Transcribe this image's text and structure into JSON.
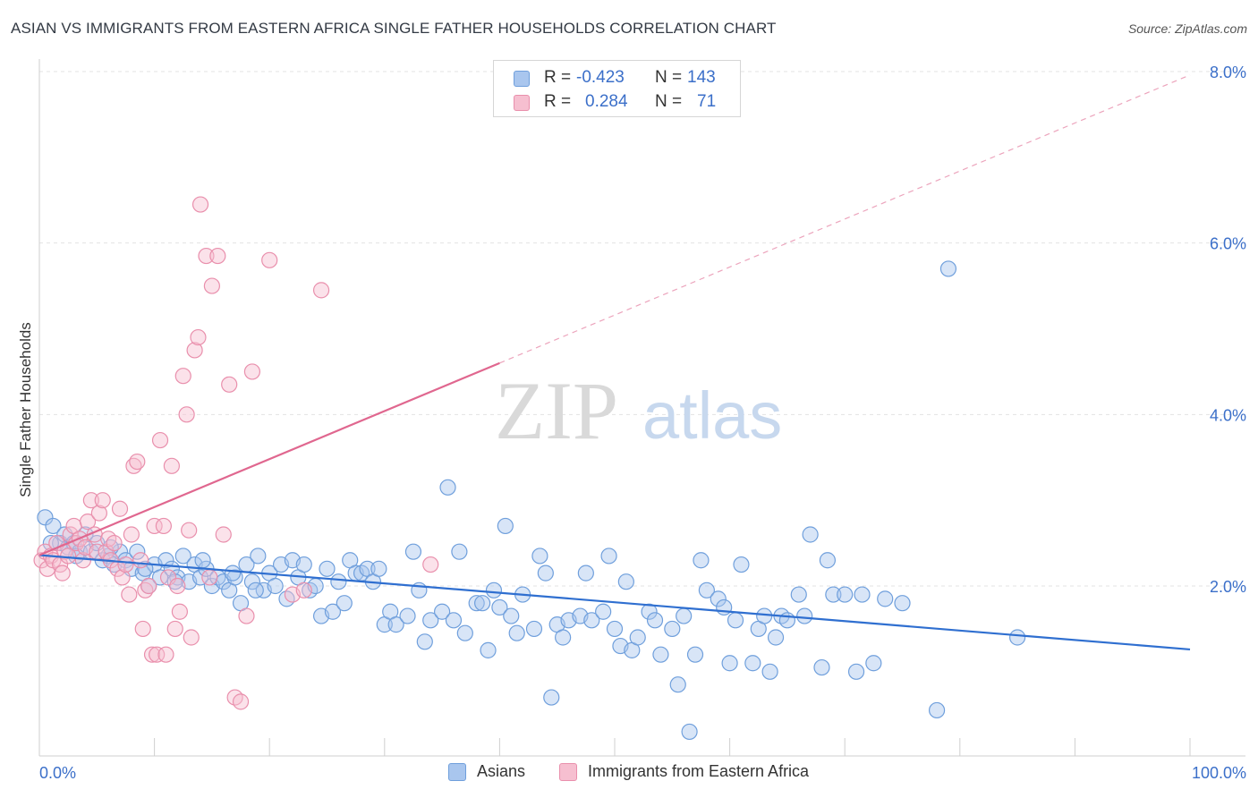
{
  "title": "ASIAN VS IMMIGRANTS FROM EASTERN AFRICA SINGLE FATHER HOUSEHOLDS CORRELATION CHART",
  "source": "Source: ZipAtlas.com",
  "watermark": {
    "zip": "ZIP",
    "atlas": "atlas"
  },
  "legend_top": {
    "rows": [
      {
        "r_label": "R =",
        "r_value": "-0.423",
        "n_label": "N =",
        "n_value": "143"
      },
      {
        "r_label": "R =",
        "r_value": "0.284",
        "n_label": "N =",
        "n_value": "71"
      }
    ]
  },
  "legend_bottom": [
    "Asians",
    "Immigrants from Eastern Africa"
  ],
  "colors": {
    "blue_fill": "#a9c6ee",
    "blue_stroke": "#6f9fdc",
    "blue_line": "#2f6fd0",
    "pink_fill": "#f6bfd0",
    "pink_stroke": "#e98fac",
    "pink_line": "#e0678f",
    "tick_label": "#3b6fc9",
    "grid": "#e3e3e3"
  },
  "chart_data": {
    "type": "scatter",
    "title": "ASIAN VS IMMIGRANTS FROM EASTERN AFRICA SINGLE FATHER HOUSEHOLDS CORRELATION CHART",
    "xlabel": "",
    "ylabel": "Single Father Households",
    "xlim": [
      0,
      100
    ],
    "ylim": [
      0,
      8.3
    ],
    "x_tick_labels": [
      "0.0%",
      "100.0%"
    ],
    "y_ticks": [
      2,
      4,
      6,
      8
    ],
    "y_tick_labels": [
      "2.0%",
      "4.0%",
      "6.0%",
      "8.0%"
    ],
    "grid": true,
    "legend_position": "bottom",
    "series": [
      {
        "name": "Asians",
        "trend": {
          "x": [
            0,
            100
          ],
          "y": [
            2.36,
            1.26
          ],
          "dashed_x": []
        },
        "points": [
          [
            0.5,
            2.8
          ],
          [
            1.2,
            2.7
          ],
          [
            1.8,
            2.5
          ],
          [
            2.2,
            2.6
          ],
          [
            2.5,
            2.45
          ],
          [
            3.0,
            2.5
          ],
          [
            3.5,
            2.4
          ],
          [
            4.0,
            2.6
          ],
          [
            4.5,
            2.4
          ],
          [
            5.0,
            2.5
          ],
          [
            5.5,
            2.3
          ],
          [
            6.0,
            2.35
          ],
          [
            6.5,
            2.25
          ],
          [
            7.0,
            2.4
          ],
          [
            7.5,
            2.3
          ],
          [
            8.0,
            2.2
          ],
          [
            8.5,
            2.4
          ],
          [
            9.0,
            2.15
          ],
          [
            9.5,
            2.0
          ],
          [
            10.0,
            2.25
          ],
          [
            10.5,
            2.1
          ],
          [
            11.0,
            2.3
          ],
          [
            11.5,
            2.2
          ],
          [
            12.0,
            2.1
          ],
          [
            12.5,
            2.35
          ],
          [
            13.0,
            2.05
          ],
          [
            13.5,
            2.25
          ],
          [
            14.0,
            2.1
          ],
          [
            14.5,
            2.2
          ],
          [
            15.0,
            2.0
          ],
          [
            15.5,
            2.1
          ],
          [
            16.0,
            2.05
          ],
          [
            16.5,
            1.95
          ],
          [
            17.0,
            2.1
          ],
          [
            17.5,
            1.8
          ],
          [
            18.0,
            2.25
          ],
          [
            18.5,
            2.05
          ],
          [
            19.0,
            2.35
          ],
          [
            19.5,
            1.95
          ],
          [
            20.0,
            2.15
          ],
          [
            20.5,
            2.0
          ],
          [
            21.0,
            2.25
          ],
          [
            21.5,
            1.85
          ],
          [
            22.0,
            2.3
          ],
          [
            22.5,
            2.1
          ],
          [
            23.0,
            2.25
          ],
          [
            23.5,
            1.95
          ],
          [
            24.0,
            2.0
          ],
          [
            24.5,
            1.65
          ],
          [
            25.0,
            2.2
          ],
          [
            25.5,
            1.7
          ],
          [
            26.0,
            2.05
          ],
          [
            26.5,
            1.8
          ],
          [
            27.0,
            2.3
          ],
          [
            27.5,
            2.15
          ],
          [
            28.0,
            2.15
          ],
          [
            28.5,
            2.2
          ],
          [
            29.0,
            2.05
          ],
          [
            29.5,
            2.2
          ],
          [
            30.0,
            1.55
          ],
          [
            30.5,
            1.7
          ],
          [
            31.0,
            1.55
          ],
          [
            32.0,
            1.65
          ],
          [
            32.5,
            2.4
          ],
          [
            33.0,
            1.95
          ],
          [
            33.5,
            1.35
          ],
          [
            34.0,
            1.6
          ],
          [
            35.0,
            1.7
          ],
          [
            35.5,
            3.15
          ],
          [
            36.0,
            1.6
          ],
          [
            36.5,
            2.4
          ],
          [
            37.0,
            1.45
          ],
          [
            38.0,
            1.8
          ],
          [
            38.5,
            1.8
          ],
          [
            39.0,
            1.25
          ],
          [
            39.5,
            1.95
          ],
          [
            40.0,
            1.75
          ],
          [
            40.5,
            2.7
          ],
          [
            41.0,
            1.65
          ],
          [
            41.5,
            1.45
          ],
          [
            42.0,
            1.9
          ],
          [
            43.0,
            1.5
          ],
          [
            43.5,
            2.35
          ],
          [
            44.0,
            2.15
          ],
          [
            44.5,
            0.7
          ],
          [
            45.0,
            1.55
          ],
          [
            45.5,
            1.4
          ],
          [
            46.0,
            1.6
          ],
          [
            47.0,
            1.65
          ],
          [
            47.5,
            2.15
          ],
          [
            48.0,
            1.6
          ],
          [
            49.0,
            1.7
          ],
          [
            49.5,
            2.35
          ],
          [
            50.0,
            1.5
          ],
          [
            50.5,
            1.3
          ],
          [
            51.0,
            2.05
          ],
          [
            51.5,
            1.25
          ],
          [
            52.0,
            1.4
          ],
          [
            53.0,
            1.7
          ],
          [
            53.5,
            1.6
          ],
          [
            54.0,
            1.2
          ],
          [
            55.0,
            1.5
          ],
          [
            55.5,
            0.85
          ],
          [
            56.0,
            1.65
          ],
          [
            56.5,
            0.3
          ],
          [
            57.0,
            1.2
          ],
          [
            57.5,
            2.3
          ],
          [
            58.0,
            1.95
          ],
          [
            59.0,
            1.85
          ],
          [
            59.5,
            1.75
          ],
          [
            60.0,
            1.1
          ],
          [
            60.5,
            1.6
          ],
          [
            61.0,
            2.25
          ],
          [
            62.0,
            1.1
          ],
          [
            62.5,
            1.5
          ],
          [
            63.0,
            1.65
          ],
          [
            63.5,
            1.0
          ],
          [
            64.0,
            1.4
          ],
          [
            64.5,
            1.65
          ],
          [
            65.0,
            1.6
          ],
          [
            66.0,
            1.9
          ],
          [
            66.5,
            1.65
          ],
          [
            67.0,
            2.6
          ],
          [
            68.0,
            1.05
          ],
          [
            68.5,
            2.3
          ],
          [
            69.0,
            1.9
          ],
          [
            70.0,
            1.9
          ],
          [
            71.0,
            1.0
          ],
          [
            71.5,
            1.9
          ],
          [
            72.5,
            1.1
          ],
          [
            73.5,
            1.85
          ],
          [
            75.0,
            1.8
          ],
          [
            78.0,
            0.55
          ],
          [
            79.0,
            5.7
          ],
          [
            85.0,
            1.4
          ],
          [
            1.0,
            2.5
          ],
          [
            3.2,
            2.35
          ],
          [
            6.2,
            2.45
          ],
          [
            9.2,
            2.2
          ],
          [
            11.8,
            2.05
          ],
          [
            14.2,
            2.3
          ],
          [
            16.8,
            2.15
          ],
          [
            18.8,
            1.95
          ]
        ]
      },
      {
        "name": "Immigrants from Eastern Africa",
        "trend": {
          "x": [
            0,
            40
          ],
          "y": [
            2.36,
            4.6
          ],
          "dashed_x": [
            40,
            100
          ]
        },
        "points": [
          [
            0.2,
            2.3
          ],
          [
            0.5,
            2.4
          ],
          [
            0.7,
            2.2
          ],
          [
            1.0,
            2.35
          ],
          [
            1.2,
            2.3
          ],
          [
            1.5,
            2.5
          ],
          [
            1.8,
            2.25
          ],
          [
            2.0,
            2.15
          ],
          [
            2.2,
            2.4
          ],
          [
            2.5,
            2.35
          ],
          [
            2.7,
            2.6
          ],
          [
            3.0,
            2.7
          ],
          [
            3.2,
            2.5
          ],
          [
            3.5,
            2.55
          ],
          [
            3.8,
            2.3
          ],
          [
            4.0,
            2.45
          ],
          [
            4.2,
            2.75
          ],
          [
            4.5,
            3.0
          ],
          [
            4.8,
            2.6
          ],
          [
            5.0,
            2.4
          ],
          [
            5.2,
            2.85
          ],
          [
            5.5,
            3.0
          ],
          [
            5.8,
            2.4
          ],
          [
            6.0,
            2.55
          ],
          [
            6.2,
            2.3
          ],
          [
            6.5,
            2.5
          ],
          [
            6.8,
            2.2
          ],
          [
            7.0,
            2.9
          ],
          [
            7.2,
            2.1
          ],
          [
            7.5,
            2.25
          ],
          [
            7.8,
            1.9
          ],
          [
            8.0,
            2.6
          ],
          [
            8.2,
            3.4
          ],
          [
            8.5,
            3.45
          ],
          [
            8.8,
            2.3
          ],
          [
            9.0,
            1.5
          ],
          [
            9.2,
            1.95
          ],
          [
            9.5,
            2.0
          ],
          [
            9.8,
            1.2
          ],
          [
            10.0,
            2.7
          ],
          [
            10.2,
            1.2
          ],
          [
            10.5,
            3.7
          ],
          [
            10.8,
            2.7
          ],
          [
            11.0,
            1.2
          ],
          [
            11.2,
            2.1
          ],
          [
            11.5,
            3.4
          ],
          [
            11.8,
            1.5
          ],
          [
            12.0,
            2.0
          ],
          [
            12.2,
            1.7
          ],
          [
            12.5,
            4.45
          ],
          [
            12.8,
            4.0
          ],
          [
            13.0,
            2.65
          ],
          [
            13.2,
            1.4
          ],
          [
            13.5,
            4.75
          ],
          [
            13.8,
            4.9
          ],
          [
            14.0,
            6.45
          ],
          [
            14.5,
            5.85
          ],
          [
            14.8,
            2.1
          ],
          [
            15.0,
            5.5
          ],
          [
            15.5,
            5.85
          ],
          [
            16.0,
            2.6
          ],
          [
            16.5,
            4.35
          ],
          [
            17.0,
            0.7
          ],
          [
            17.5,
            0.65
          ],
          [
            18.0,
            1.65
          ],
          [
            18.5,
            4.5
          ],
          [
            20.0,
            5.8
          ],
          [
            22.0,
            1.9
          ],
          [
            23.0,
            1.95
          ],
          [
            24.5,
            5.45
          ],
          [
            34.0,
            2.25
          ]
        ]
      }
    ]
  }
}
